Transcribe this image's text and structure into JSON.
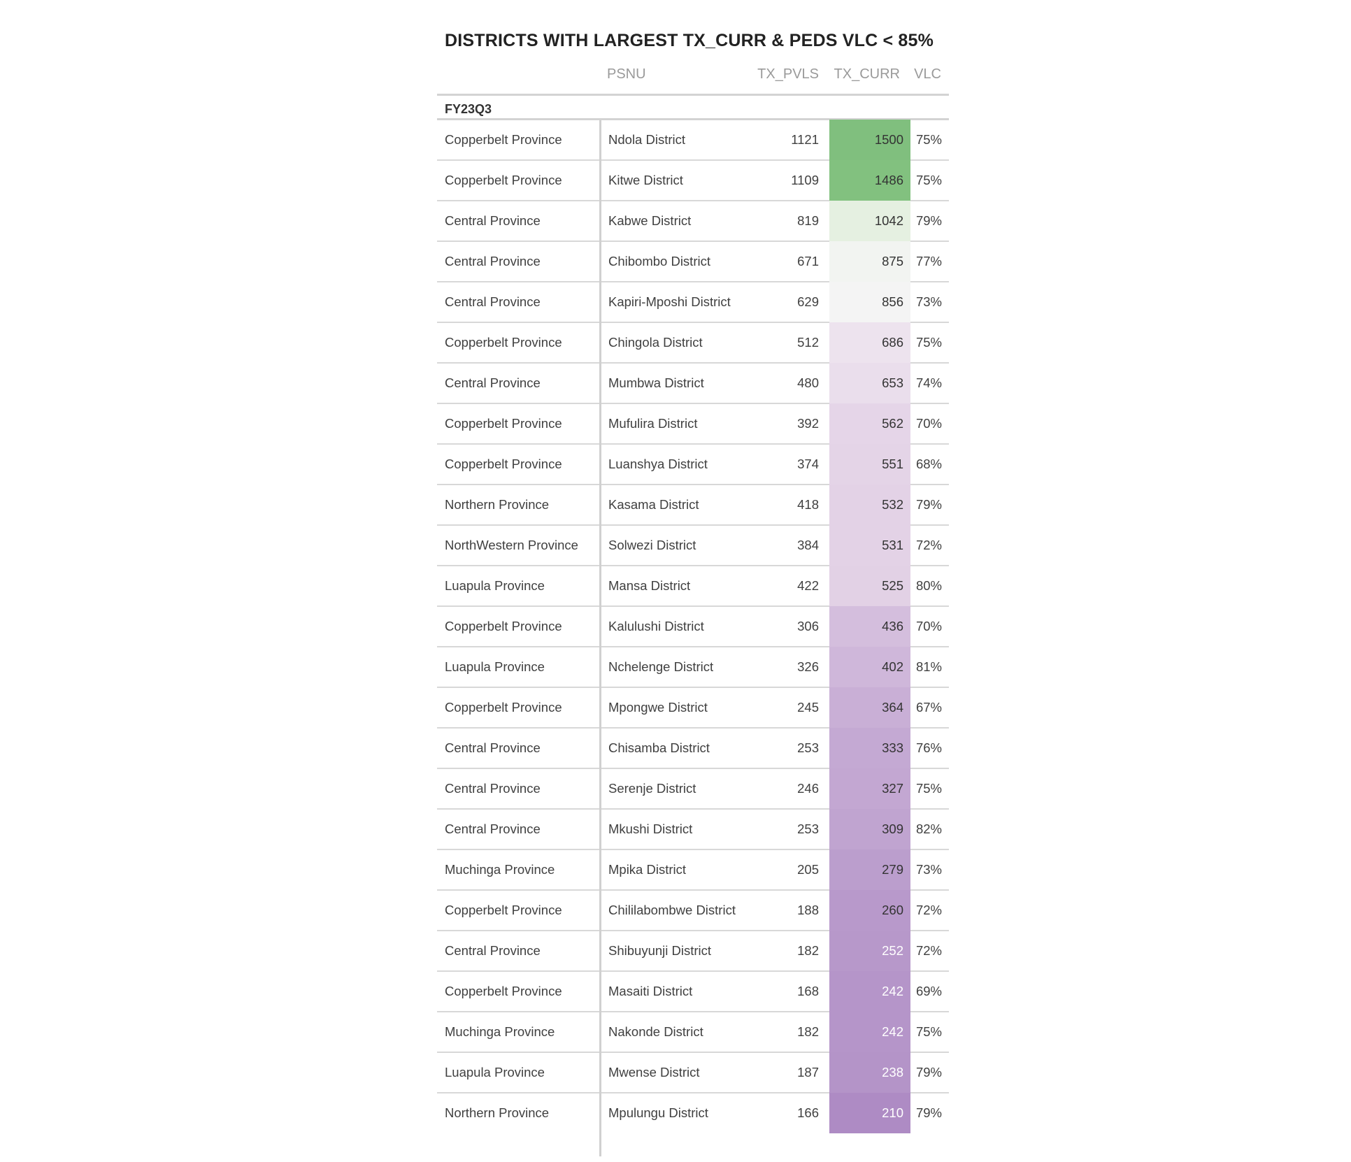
{
  "chart_data": {
    "type": "table",
    "title": "DISTRICTS WITH LARGEST TX_CURR & PEDS VLC < 85%",
    "columns": [
      "",
      "PSNU",
      "TX_PVLS",
      "TX_CURR",
      "VLC"
    ],
    "group": "FY23Q3",
    "color_scale": {
      "low": "#ae8bc4",
      "mid": "#f5f5f5",
      "high": "#80bf7e",
      "light_text": "#ffffff",
      "dark_text": "#333333"
    },
    "rows": [
      {
        "province": "Copperbelt Province",
        "psnu": "Ndola District",
        "tx_pvls": "1121",
        "tx_curr": "1500",
        "vlc": "75%",
        "color": "#80bf7e",
        "text_color": "#333333"
      },
      {
        "province": "Copperbelt Province",
        "psnu": "Kitwe District",
        "tx_pvls": "1109",
        "tx_curr": "1486",
        "vlc": "75%",
        "color": "#82c17f",
        "text_color": "#333333"
      },
      {
        "province": "Central Province",
        "psnu": "Kabwe District",
        "tx_pvls": "819",
        "tx_curr": "1042",
        "vlc": "79%",
        "color": "#e5f0e1",
        "text_color": "#333333"
      },
      {
        "province": "Central Province",
        "psnu": "Chibombo District",
        "tx_pvls": "671",
        "tx_curr": "875",
        "vlc": "77%",
        "color": "#f2f4f1",
        "text_color": "#333333"
      },
      {
        "province": "Central Province",
        "psnu": "Kapiri-Mposhi District",
        "tx_pvls": "629",
        "tx_curr": "856",
        "vlc": "73%",
        "color": "#f4f4f4",
        "text_color": "#333333"
      },
      {
        "province": "Copperbelt Province",
        "psnu": "Chingola District",
        "tx_pvls": "512",
        "tx_curr": "686",
        "vlc": "75%",
        "color": "#ede3ee",
        "text_color": "#333333"
      },
      {
        "province": "Central Province",
        "psnu": "Mumbwa District",
        "tx_pvls": "480",
        "tx_curr": "653",
        "vlc": "74%",
        "color": "#eadeec",
        "text_color": "#333333"
      },
      {
        "province": "Copperbelt Province",
        "psnu": "Mufulira District",
        "tx_pvls": "392",
        "tx_curr": "562",
        "vlc": "70%",
        "color": "#e5d5e8",
        "text_color": "#333333"
      },
      {
        "province": "Copperbelt Province",
        "psnu": "Luanshya District",
        "tx_pvls": "374",
        "tx_curr": "551",
        "vlc": "68%",
        "color": "#e4d4e7",
        "text_color": "#333333"
      },
      {
        "province": "Northern Province",
        "psnu": "Kasama District",
        "tx_pvls": "418",
        "tx_curr": "532",
        "vlc": "79%",
        "color": "#e3d2e6",
        "text_color": "#333333"
      },
      {
        "province": "NorthWestern Province",
        "psnu": "Solwezi District",
        "tx_pvls": "384",
        "tx_curr": "531",
        "vlc": "72%",
        "color": "#e3d2e6",
        "text_color": "#333333"
      },
      {
        "province": "Luapula Province",
        "psnu": "Mansa District",
        "tx_pvls": "422",
        "tx_curr": "525",
        "vlc": "80%",
        "color": "#e2d1e5",
        "text_color": "#333333"
      },
      {
        "province": "Copperbelt Province",
        "psnu": "Kalulushi District",
        "tx_pvls": "306",
        "tx_curr": "436",
        "vlc": "70%",
        "color": "#d4bedd",
        "text_color": "#333333"
      },
      {
        "province": "Luapula Province",
        "psnu": "Nchelenge District",
        "tx_pvls": "326",
        "tx_curr": "402",
        "vlc": "81%",
        "color": "#cfb7da",
        "text_color": "#333333"
      },
      {
        "province": "Copperbelt Province",
        "psnu": "Mpongwe District",
        "tx_pvls": "245",
        "tx_curr": "364",
        "vlc": "67%",
        "color": "#c9afd6",
        "text_color": "#333333"
      },
      {
        "province": "Central Province",
        "psnu": "Chisamba District",
        "tx_pvls": "253",
        "tx_curr": "333",
        "vlc": "76%",
        "color": "#c4a9d3",
        "text_color": "#333333"
      },
      {
        "province": "Central Province",
        "psnu": "Serenje District",
        "tx_pvls": "246",
        "tx_curr": "327",
        "vlc": "75%",
        "color": "#c3a7d2",
        "text_color": "#333333"
      },
      {
        "province": "Central Province",
        "psnu": "Mkushi District",
        "tx_pvls": "253",
        "tx_curr": "309",
        "vlc": "82%",
        "color": "#c0a4d0",
        "text_color": "#333333"
      },
      {
        "province": "Muchinga Province",
        "psnu": "Mpika District",
        "tx_pvls": "205",
        "tx_curr": "279",
        "vlc": "73%",
        "color": "#bb9ecd",
        "text_color": "#333333"
      },
      {
        "province": "Copperbelt Province",
        "psnu": "Chililabombwe District",
        "tx_pvls": "188",
        "tx_curr": "260",
        "vlc": "72%",
        "color": "#b899cb",
        "text_color": "#333333"
      },
      {
        "province": "Central Province",
        "psnu": "Shibuyunji District",
        "tx_pvls": "182",
        "tx_curr": "252",
        "vlc": "72%",
        "color": "#b798ca",
        "text_color": "#ffffff"
      },
      {
        "province": "Copperbelt Province",
        "psnu": "Masaiti District",
        "tx_pvls": "168",
        "tx_curr": "242",
        "vlc": "69%",
        "color": "#b595c9",
        "text_color": "#ffffff"
      },
      {
        "province": "Muchinga Province",
        "psnu": "Nakonde District",
        "tx_pvls": "182",
        "tx_curr": "242",
        "vlc": "75%",
        "color": "#b595c9",
        "text_color": "#ffffff"
      },
      {
        "province": "Luapula Province",
        "psnu": "Mwense District",
        "tx_pvls": "187",
        "tx_curr": "238",
        "vlc": "79%",
        "color": "#b494c8",
        "text_color": "#ffffff"
      },
      {
        "province": "Northern Province",
        "psnu": "Mpulungu District",
        "tx_pvls": "166",
        "tx_curr": "210",
        "vlc": "79%",
        "color": "#ae8bc4",
        "text_color": "#ffffff"
      }
    ]
  }
}
